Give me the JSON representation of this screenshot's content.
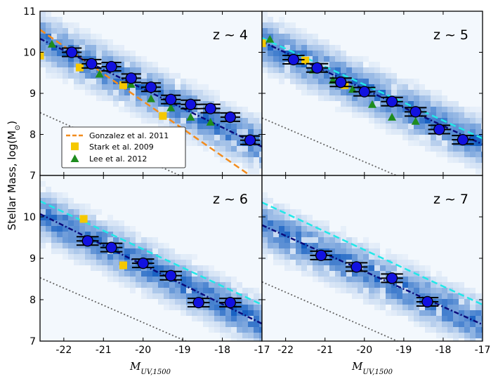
{
  "figure": {
    "ylabel": "Stellar Mass, log(M",
    "ylabel_sub": "⊙",
    "ylabel_close": ")",
    "xlabel": "M",
    "xlabel_sub": "UV,1500",
    "xlim": [
      -22.6,
      -17.0
    ],
    "ylim": [
      7,
      11
    ],
    "xticks": [
      -22,
      -21,
      -20,
      -19,
      -18,
      -17
    ],
    "xtick_labels": [
      "-22",
      "-21",
      "-20",
      "-19",
      "-18",
      "-17"
    ],
    "yticks": [
      7,
      8,
      9,
      10,
      11
    ],
    "ytick_labels": [
      "7",
      "8",
      "9",
      "10",
      "11"
    ]
  },
  "colors": {
    "median": "#1212e0",
    "fit": "#0a0a7a",
    "cyan": "#22e8e8",
    "gonzalez": "#f28c1e",
    "stark": "#f5c800",
    "lee": "#1e8c1e",
    "gray": "#666666"
  },
  "legend": {
    "gonzalez": "Gonzalez et al. 2011",
    "stark": "Stark et al. 2009",
    "lee": "Lee et al. 2012"
  },
  "chart_data": [
    {
      "type": "scatter",
      "label": "z ~ 4",
      "median": {
        "x": [
          -21.8,
          -21.3,
          -20.8,
          -20.3,
          -19.8,
          -19.3,
          -18.8,
          -18.3,
          -17.8,
          -17.3
        ],
        "y": [
          10.0,
          9.72,
          9.65,
          9.37,
          9.15,
          8.85,
          8.73,
          8.63,
          8.42,
          7.86
        ],
        "xerr": 0.25
      },
      "fit_line": {
        "x": [
          -22.6,
          -17.0
        ],
        "y": [
          10.33,
          7.7
        ]
      },
      "cyan_line": null,
      "gray_line": {
        "x": [
          -22.6,
          -17.0
        ],
        "y": [
          8.53,
          6.1
        ]
      },
      "gonzalez": {
        "x": [
          -22.6,
          -17.3
        ],
        "y": [
          10.55,
          7.0
        ]
      },
      "stark": {
        "x": [
          -22.6,
          -21.6,
          -20.5,
          -19.5
        ],
        "y": [
          9.92,
          9.63,
          9.2,
          8.45
        ]
      },
      "lee": {
        "x": [
          -22.3,
          -21.1,
          -20.3,
          -19.8,
          -19.3,
          -18.8,
          -18.3
        ],
        "y": [
          10.2,
          9.47,
          9.22,
          8.87,
          8.65,
          8.42,
          8.3
        ]
      }
    },
    {
      "type": "scatter",
      "label": "z ~ 5",
      "median": {
        "x": [
          -21.8,
          -21.2,
          -20.6,
          -20.0,
          -19.3,
          -18.7,
          -18.1,
          -17.5
        ],
        "y": [
          9.82,
          9.62,
          9.27,
          9.04,
          8.8,
          8.55,
          8.12,
          7.87
        ],
        "xerr": 0.28
      },
      "fit_line": {
        "x": [
          -22.6,
          -17.0
        ],
        "y": [
          10.26,
          7.76
        ]
      },
      "cyan_line": {
        "x": [
          -22.6,
          -17.0
        ],
        "y": [
          10.35,
          7.9
        ]
      },
      "gray_line": {
        "x": [
          -22.6,
          -17.0
        ],
        "y": [
          8.4,
          6.1
        ]
      },
      "gonzalez": null,
      "stark": {
        "x": [
          -22.6,
          -21.5,
          -20.5
        ],
        "y": [
          10.22,
          9.8,
          9.2
        ]
      },
      "lee": {
        "x": [
          -22.4,
          -21.8,
          -21.3,
          -20.8,
          -20.3,
          -19.8,
          -19.3,
          -18.7
        ],
        "y": [
          10.32,
          9.8,
          9.57,
          9.32,
          9.1,
          8.73,
          8.42,
          8.32
        ]
      }
    },
    {
      "type": "scatter",
      "label": "z ~ 6",
      "median": {
        "x": [
          -21.4,
          -20.8,
          -20.0,
          -19.3,
          -18.6,
          -17.8
        ],
        "y": [
          9.42,
          9.26,
          8.88,
          8.58,
          7.93,
          7.93
        ],
        "xerr": 0.28
      },
      "fit_line": {
        "x": [
          -22.6,
          -17.0
        ],
        "y": [
          10.07,
          7.42
        ]
      },
      "cyan_line": {
        "x": [
          -22.6,
          -17.0
        ],
        "y": [
          10.38,
          7.88
        ]
      },
      "gray_line": {
        "x": [
          -22.6,
          -17.0
        ],
        "y": [
          8.53,
          6.2
        ]
      },
      "gonzalez": null,
      "stark": {
        "x": [
          -21.5,
          -20.5
        ],
        "y": [
          9.95,
          8.83
        ]
      },
      "lee": null
    },
    {
      "type": "scatter",
      "label": "z ~ 7",
      "median": {
        "x": [
          -21.1,
          -20.2,
          -19.3,
          -18.4
        ],
        "y": [
          9.07,
          8.79,
          8.52,
          7.95
        ],
        "xerr": 0.28
      },
      "fit_line": {
        "x": [
          -22.6,
          -17.0
        ],
        "y": [
          9.8,
          7.4
        ]
      },
      "cyan_line": {
        "x": [
          -22.6,
          -17.0
        ],
        "y": [
          10.35,
          7.88
        ]
      },
      "gray_line": {
        "x": [
          -22.6,
          -17.0
        ],
        "y": [
          8.43,
          6.1
        ]
      },
      "gonzalez": null,
      "stark": null,
      "lee": null
    }
  ]
}
